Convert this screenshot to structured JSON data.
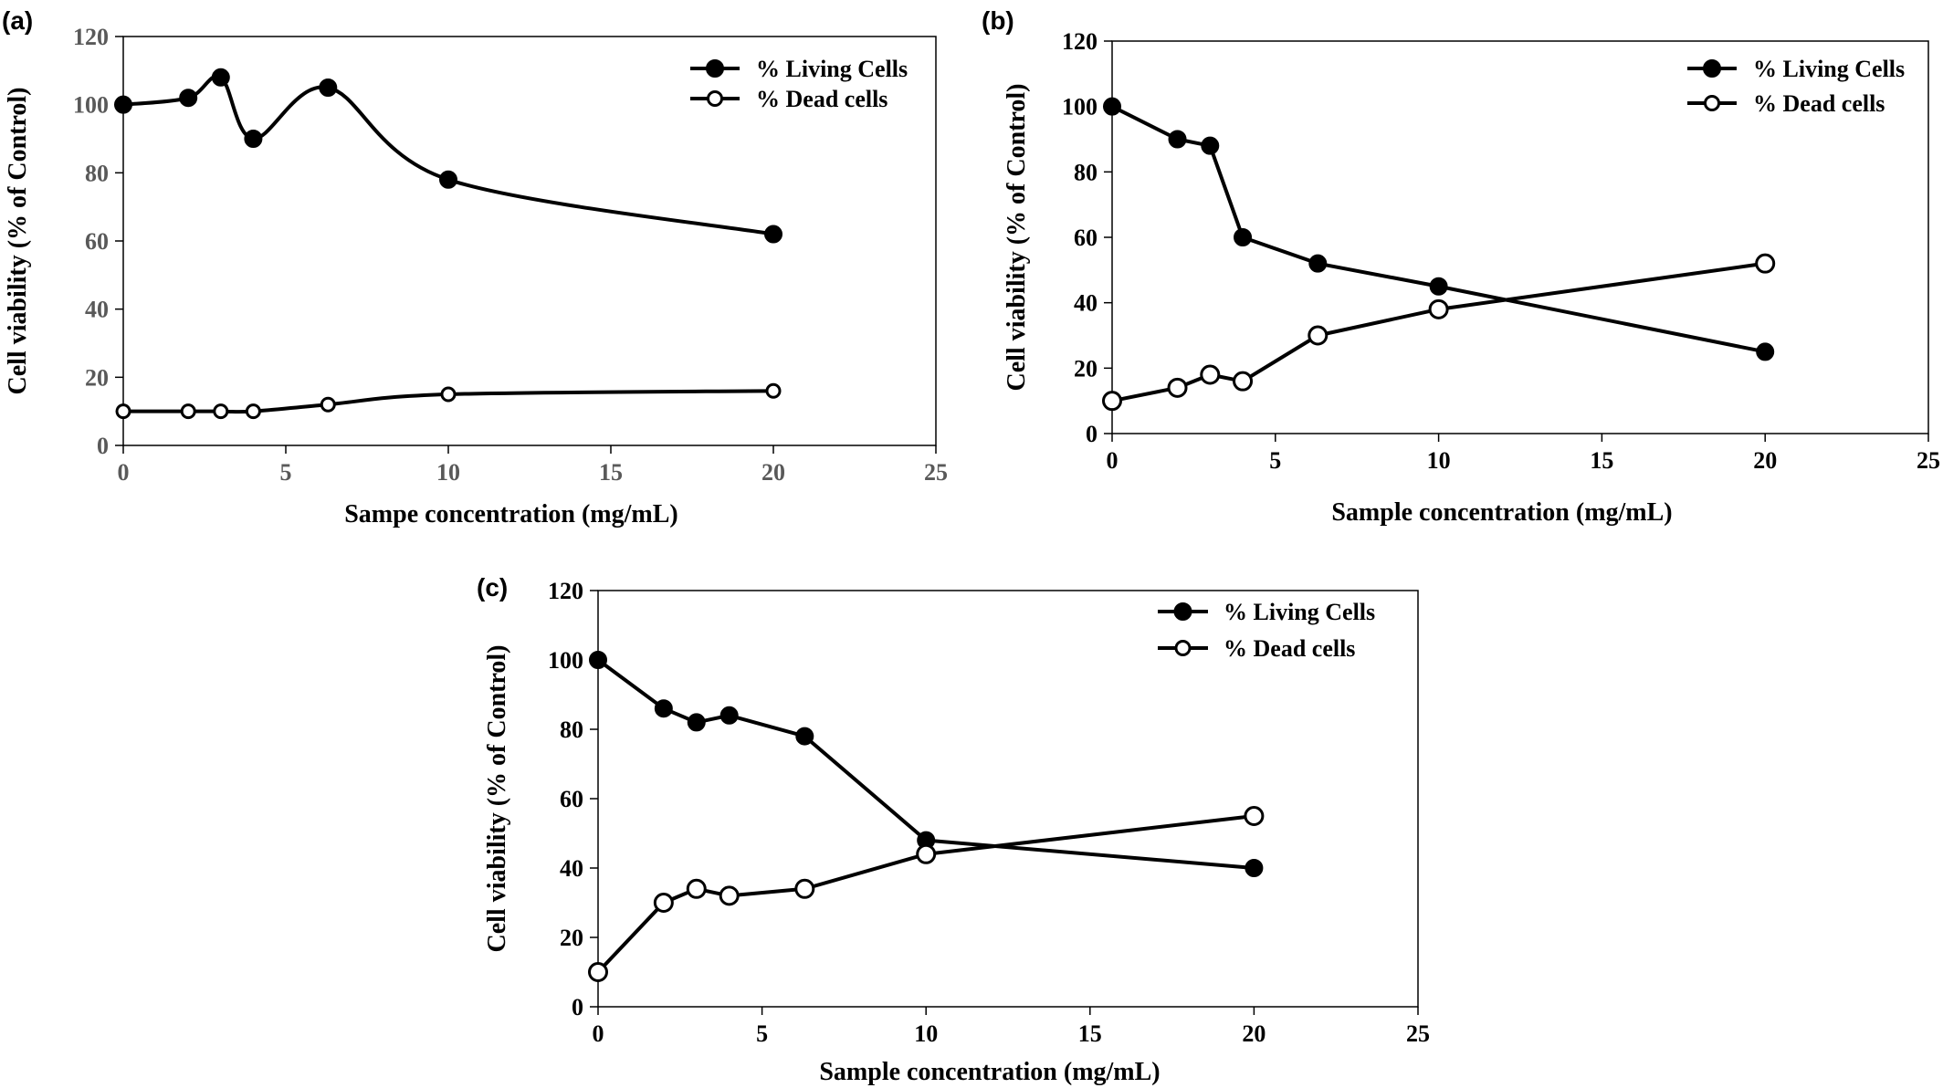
{
  "chart_data": [
    {
      "type": "line",
      "panel_label": "(a)",
      "smooth": true,
      "xlabel": "Sampe concentration (mg/mL)",
      "ylabel": "Cell viability (% of Control)",
      "xlim": [
        0,
        25
      ],
      "ylim": [
        0,
        120
      ],
      "xticks": [
        "0",
        "5",
        "10",
        "15",
        "20",
        "25"
      ],
      "yticks": [
        "0",
        "20",
        "40",
        "60",
        "80",
        "100",
        "120"
      ],
      "legend_position": "top-right",
      "grid": false,
      "series": [
        {
          "name": "% Living Cells",
          "marker": "filled-circle",
          "x": [
            0,
            2,
            3,
            4,
            6.3,
            10,
            20
          ],
          "y": [
            100,
            102,
            108,
            90,
            105,
            78,
            62
          ]
        },
        {
          "name": "% Dead cells",
          "marker": "open-circle",
          "x": [
            0,
            2,
            3,
            4,
            6.3,
            10,
            20
          ],
          "y": [
            10,
            10,
            10,
            10,
            12,
            15,
            16
          ]
        }
      ]
    },
    {
      "type": "line",
      "panel_label": "(b)",
      "smooth": false,
      "xlabel": "Sample concentration (mg/mL)",
      "ylabel": "Cell viability (% of Control)",
      "xlim": [
        0,
        25
      ],
      "ylim": [
        0,
        120
      ],
      "xticks": [
        "0",
        "5",
        "10",
        "15",
        "20",
        "25"
      ],
      "yticks": [
        "0",
        "20",
        "40",
        "60",
        "80",
        "100",
        "120"
      ],
      "legend_position": "top-right",
      "grid": false,
      "series": [
        {
          "name": "% Living Cells",
          "marker": "filled-circle",
          "x": [
            0,
            2,
            3,
            4,
            6.3,
            10,
            20
          ],
          "y": [
            100,
            90,
            88,
            60,
            52,
            45,
            25
          ]
        },
        {
          "name": "% Dead cells",
          "marker": "open-circle",
          "x": [
            0,
            2,
            3,
            4,
            6.3,
            10,
            20
          ],
          "y": [
            10,
            14,
            18,
            16,
            30,
            38,
            52
          ]
        }
      ]
    },
    {
      "type": "line",
      "panel_label": "(c)",
      "smooth": false,
      "xlabel": "Sample concentration (mg/mL)",
      "ylabel": "Cell viability (% of Control)",
      "xlim": [
        0,
        25
      ],
      "ylim": [
        0,
        120
      ],
      "xticks": [
        "0",
        "5",
        "10",
        "15",
        "20",
        "25"
      ],
      "yticks": [
        "0",
        "20",
        "40",
        "60",
        "80",
        "100",
        "120"
      ],
      "legend_position": "top-right",
      "grid": false,
      "series": [
        {
          "name": "% Living Cells",
          "marker": "filled-circle",
          "x": [
            0,
            2,
            3,
            4,
            6.3,
            10,
            20
          ],
          "y": [
            100,
            86,
            82,
            84,
            78,
            48,
            40
          ]
        },
        {
          "name": "% Dead cells",
          "marker": "open-circle",
          "x": [
            0,
            2,
            3,
            4,
            6.3,
            10,
            20
          ],
          "y": [
            10,
            30,
            34,
            32,
            34,
            44,
            55
          ]
        }
      ]
    }
  ]
}
